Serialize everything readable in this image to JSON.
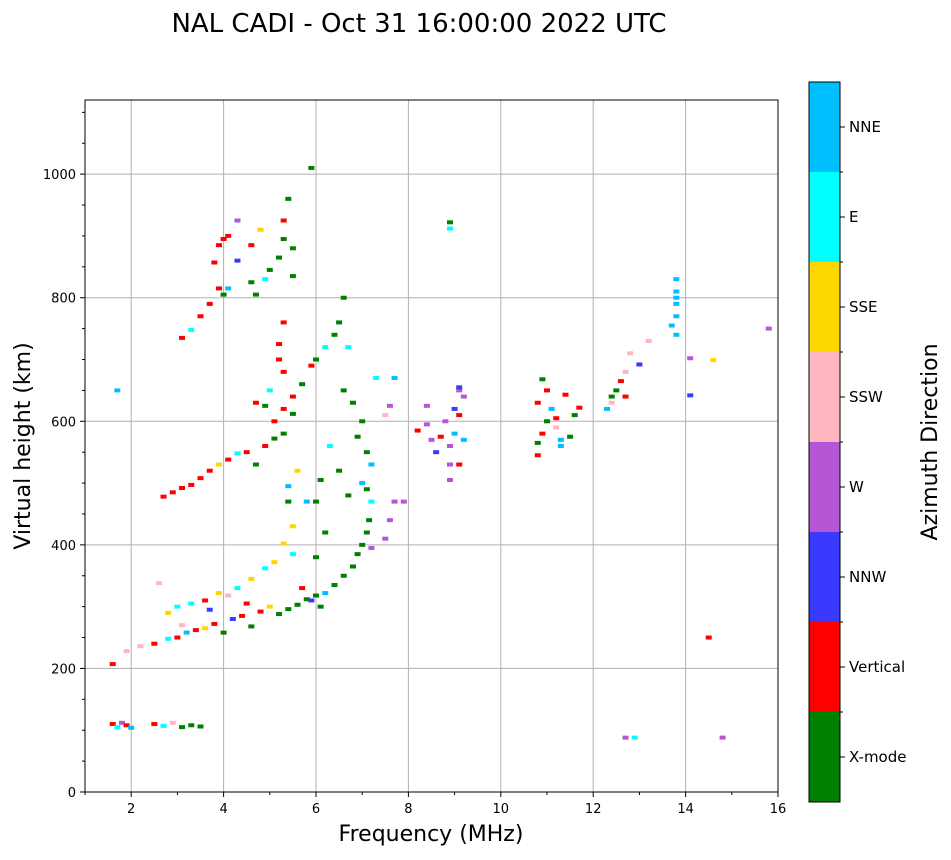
{
  "chart_data": {
    "type": "scatter",
    "title": "NAL CADI - Oct 31 16:00:00 2022 UTC",
    "xlabel": "Frequency (MHz)",
    "ylabel": "Virtual height (km)",
    "xlim": [
      1.0,
      16.0
    ],
    "ylim": [
      0,
      1120
    ],
    "xticks": [
      2,
      4,
      6,
      8,
      10,
      12,
      14,
      16
    ],
    "yticks": [
      0,
      200,
      400,
      600,
      800,
      1000
    ],
    "grid": true,
    "colorbar": {
      "label": "Azimuth Direction",
      "categories": [
        {
          "name": "X-mode",
          "color": "#008000"
        },
        {
          "name": "Vertical",
          "color": "#ff0000"
        },
        {
          "name": "NNW",
          "color": "#3a3aff"
        },
        {
          "name": "W",
          "color": "#b656d6"
        },
        {
          "name": "SSW",
          "color": "#ffb6c1"
        },
        {
          "name": "SSE",
          "color": "#ffd700"
        },
        {
          "name": "E",
          "color": "#00ffff"
        },
        {
          "name": "NNE",
          "color": "#00bfff"
        }
      ]
    },
    "points": [
      [
        1.6,
        110,
        "Vertical"
      ],
      [
        1.7,
        105,
        "E"
      ],
      [
        1.8,
        112,
        "W"
      ],
      [
        1.9,
        108,
        "Vertical"
      ],
      [
        2.0,
        104,
        "NNE"
      ],
      [
        2.5,
        110,
        "Vertical"
      ],
      [
        2.7,
        107,
        "E"
      ],
      [
        2.9,
        112,
        "SSW"
      ],
      [
        3.1,
        105,
        "X-mode"
      ],
      [
        3.3,
        108,
        "X-mode"
      ],
      [
        3.5,
        106,
        "X-mode"
      ],
      [
        1.7,
        650,
        "NNE"
      ],
      [
        1.6,
        207,
        "Vertical"
      ],
      [
        1.9,
        228,
        "SSW"
      ],
      [
        2.2,
        236,
        "SSW"
      ],
      [
        2.5,
        240,
        "Vertical"
      ],
      [
        2.8,
        248,
        "E"
      ],
      [
        3.0,
        250,
        "Vertical"
      ],
      [
        3.2,
        258,
        "NNE"
      ],
      [
        3.4,
        262,
        "Vertical"
      ],
      [
        3.6,
        265,
        "SSE"
      ],
      [
        3.8,
        272,
        "Vertical"
      ],
      [
        4.0,
        258,
        "X-mode"
      ],
      [
        4.2,
        280,
        "NNW"
      ],
      [
        4.4,
        285,
        "Vertical"
      ],
      [
        4.6,
        268,
        "X-mode"
      ],
      [
        4.8,
        292,
        "Vertical"
      ],
      [
        5.0,
        300,
        "SSE"
      ],
      [
        5.2,
        288,
        "X-mode"
      ],
      [
        5.4,
        296,
        "X-mode"
      ],
      [
        5.6,
        303,
        "X-mode"
      ],
      [
        5.8,
        312,
        "X-mode"
      ],
      [
        6.0,
        318,
        "X-mode"
      ],
      [
        6.2,
        322,
        "NNE"
      ],
      [
        6.4,
        335,
        "X-mode"
      ],
      [
        6.6,
        350,
        "X-mode"
      ],
      [
        6.8,
        365,
        "X-mode"
      ],
      [
        6.9,
        385,
        "X-mode"
      ],
      [
        7.0,
        400,
        "X-mode"
      ],
      [
        7.1,
        420,
        "X-mode"
      ],
      [
        7.15,
        440,
        "X-mode"
      ],
      [
        7.2,
        395,
        "W"
      ],
      [
        7.2,
        470,
        "E"
      ],
      [
        7.1,
        490,
        "X-mode"
      ],
      [
        2.8,
        290,
        "SSE"
      ],
      [
        3.0,
        300,
        "E"
      ],
      [
        3.3,
        305,
        "E"
      ],
      [
        3.6,
        310,
        "Vertical"
      ],
      [
        3.9,
        322,
        "SSE"
      ],
      [
        4.3,
        330,
        "E"
      ],
      [
        4.6,
        345,
        "SSE"
      ],
      [
        4.9,
        362,
        "E"
      ],
      [
        5.1,
        372,
        "SSE"
      ],
      [
        5.3,
        402,
        "SSE"
      ],
      [
        5.5,
        385,
        "E"
      ],
      [
        4.1,
        318,
        "SSW"
      ],
      [
        3.1,
        270,
        "SSW"
      ],
      [
        2.6,
        338,
        "SSW"
      ],
      [
        3.7,
        295,
        "NNW"
      ],
      [
        4.5,
        305,
        "Vertical"
      ],
      [
        5.7,
        330,
        "Vertical"
      ],
      [
        5.9,
        310,
        "NNW"
      ],
      [
        6.1,
        300,
        "X-mode"
      ],
      [
        2.7,
        478,
        "Vertical"
      ],
      [
        2.9,
        485,
        "Vertical"
      ],
      [
        3.1,
        492,
        "Vertical"
      ],
      [
        3.3,
        497,
        "Vertical"
      ],
      [
        3.5,
        508,
        "Vertical"
      ],
      [
        3.7,
        520,
        "Vertical"
      ],
      [
        3.9,
        530,
        "SSE"
      ],
      [
        4.1,
        538,
        "Vertical"
      ],
      [
        4.3,
        548,
        "E"
      ],
      [
        4.5,
        550,
        "Vertical"
      ],
      [
        4.7,
        530,
        "X-mode"
      ],
      [
        4.9,
        560,
        "Vertical"
      ],
      [
        5.1,
        572,
        "X-mode"
      ],
      [
        5.3,
        580,
        "X-mode"
      ],
      [
        5.5,
        612,
        "X-mode"
      ],
      [
        5.1,
        600,
        "Vertical"
      ],
      [
        5.3,
        620,
        "Vertical"
      ],
      [
        4.9,
        625,
        "X-mode"
      ],
      [
        4.7,
        630,
        "Vertical"
      ],
      [
        5.0,
        650,
        "E"
      ],
      [
        5.3,
        680,
        "Vertical"
      ],
      [
        5.2,
        700,
        "Vertical"
      ],
      [
        5.2,
        725,
        "Vertical"
      ],
      [
        5.3,
        760,
        "Vertical"
      ],
      [
        5.5,
        640,
        "Vertical"
      ],
      [
        5.7,
        660,
        "X-mode"
      ],
      [
        5.9,
        690,
        "Vertical"
      ],
      [
        6.0,
        700,
        "X-mode"
      ],
      [
        6.2,
        720,
        "E"
      ],
      [
        6.4,
        740,
        "X-mode"
      ],
      [
        6.5,
        760,
        "X-mode"
      ],
      [
        6.6,
        800,
        "X-mode"
      ],
      [
        6.7,
        720,
        "E"
      ],
      [
        6.6,
        650,
        "X-mode"
      ],
      [
        6.8,
        630,
        "X-mode"
      ],
      [
        7.0,
        600,
        "X-mode"
      ],
      [
        6.9,
        575,
        "X-mode"
      ],
      [
        7.1,
        550,
        "X-mode"
      ],
      [
        7.2,
        530,
        "NNE"
      ],
      [
        6.3,
        560,
        "E"
      ],
      [
        6.5,
        520,
        "X-mode"
      ],
      [
        6.1,
        505,
        "X-mode"
      ],
      [
        6.0,
        470,
        "X-mode"
      ],
      [
        6.7,
        480,
        "X-mode"
      ],
      [
        7.0,
        500,
        "NNE"
      ],
      [
        6.2,
        420,
        "X-mode"
      ],
      [
        6.0,
        380,
        "X-mode"
      ],
      [
        5.5,
        430,
        "SSE"
      ],
      [
        5.4,
        470,
        "X-mode"
      ],
      [
        5.6,
        520,
        "SSE"
      ],
      [
        5.8,
        470,
        "NNE"
      ],
      [
        5.4,
        495,
        "NNE"
      ],
      [
        7.3,
        670,
        "E"
      ],
      [
        7.5,
        610,
        "SSW"
      ],
      [
        7.6,
        625,
        "W"
      ],
      [
        7.7,
        670,
        "NNE"
      ],
      [
        7.7,
        470,
        "W"
      ],
      [
        7.9,
        470,
        "W"
      ],
      [
        7.6,
        440,
        "W"
      ],
      [
        7.5,
        410,
        "W"
      ],
      [
        3.1,
        735,
        "Vertical"
      ],
      [
        3.3,
        748,
        "E"
      ],
      [
        3.5,
        770,
        "Vertical"
      ],
      [
        3.7,
        790,
        "Vertical"
      ],
      [
        3.9,
        815,
        "Vertical"
      ],
      [
        4.0,
        805,
        "X-mode"
      ],
      [
        4.1,
        815,
        "NNE"
      ],
      [
        3.8,
        857,
        "Vertical"
      ],
      [
        3.9,
        885,
        "Vertical"
      ],
      [
        4.0,
        895,
        "Vertical"
      ],
      [
        4.1,
        900,
        "Vertical"
      ],
      [
        4.3,
        860,
        "NNW"
      ],
      [
        4.6,
        825,
        "X-mode"
      ],
      [
        4.7,
        805,
        "X-mode"
      ],
      [
        4.9,
        830,
        "E"
      ],
      [
        5.0,
        845,
        "X-mode"
      ],
      [
        5.2,
        865,
        "X-mode"
      ],
      [
        5.3,
        895,
        "X-mode"
      ],
      [
        5.5,
        880,
        "X-mode"
      ],
      [
        5.4,
        960,
        "X-mode"
      ],
      [
        5.3,
        925,
        "Vertical"
      ],
      [
        4.6,
        885,
        "Vertical"
      ],
      [
        4.3,
        925,
        "W"
      ],
      [
        4.8,
        910,
        "SSE"
      ],
      [
        5.5,
        835,
        "X-mode"
      ],
      [
        5.9,
        1010,
        "X-mode"
      ],
      [
        8.9,
        922,
        "X-mode"
      ],
      [
        8.9,
        912,
        "E"
      ],
      [
        8.2,
        585,
        "Vertical"
      ],
      [
        8.4,
        595,
        "W"
      ],
      [
        8.5,
        570,
        "W"
      ],
      [
        8.6,
        550,
        "NNW"
      ],
      [
        8.7,
        575,
        "Vertical"
      ],
      [
        8.8,
        600,
        "W"
      ],
      [
        8.9,
        560,
        "W"
      ],
      [
        8.9,
        530,
        "W"
      ],
      [
        9.0,
        620,
        "NNW"
      ],
      [
        9.0,
        580,
        "NNE"
      ],
      [
        9.1,
        650,
        "W"
      ],
      [
        9.1,
        610,
        "Vertical"
      ],
      [
        9.1,
        530,
        "Vertical"
      ],
      [
        9.2,
        570,
        "NNE"
      ],
      [
        9.2,
        640,
        "W"
      ],
      [
        8.4,
        625,
        "W"
      ],
      [
        8.9,
        505,
        "W"
      ],
      [
        9.1,
        655,
        "NNW"
      ],
      [
        10.8,
        565,
        "X-mode"
      ],
      [
        10.9,
        580,
        "Vertical"
      ],
      [
        11.0,
        600,
        "X-mode"
      ],
      [
        11.1,
        620,
        "NNE"
      ],
      [
        11.2,
        590,
        "SSW"
      ],
      [
        11.3,
        570,
        "NNE"
      ],
      [
        11.4,
        643,
        "Vertical"
      ],
      [
        11.5,
        575,
        "X-mode"
      ],
      [
        11.6,
        610,
        "X-mode"
      ],
      [
        11.7,
        622,
        "Vertical"
      ],
      [
        10.8,
        545,
        "Vertical"
      ],
      [
        10.9,
        668,
        "X-mode"
      ],
      [
        11.0,
        650,
        "Vertical"
      ],
      [
        11.3,
        560,
        "NNE"
      ],
      [
        11.2,
        605,
        "Vertical"
      ],
      [
        10.8,
        630,
        "Vertical"
      ],
      [
        12.3,
        620,
        "NNE"
      ],
      [
        12.4,
        640,
        "X-mode"
      ],
      [
        12.6,
        665,
        "Vertical"
      ],
      [
        12.7,
        680,
        "SSW"
      ],
      [
        12.8,
        710,
        "SSW"
      ],
      [
        12.5,
        650,
        "X-mode"
      ],
      [
        12.4,
        630,
        "SSW"
      ],
      [
        12.7,
        640,
        "Vertical"
      ],
      [
        13.0,
        692,
        "NNW"
      ],
      [
        13.2,
        730,
        "SSW"
      ],
      [
        13.8,
        830,
        "NNE"
      ],
      [
        13.8,
        810,
        "NNE"
      ],
      [
        13.8,
        790,
        "NNE"
      ],
      [
        13.8,
        770,
        "NNE"
      ],
      [
        13.7,
        755,
        "NNE"
      ],
      [
        13.8,
        740,
        "NNE"
      ],
      [
        13.8,
        800,
        "NNE"
      ],
      [
        14.1,
        702,
        "W"
      ],
      [
        14.6,
        699,
        "SSE"
      ],
      [
        14.1,
        642,
        "NNW"
      ],
      [
        15.8,
        750,
        "W"
      ],
      [
        14.5,
        250,
        "Vertical"
      ],
      [
        12.7,
        88,
        "W"
      ],
      [
        12.9,
        88,
        "E"
      ],
      [
        14.8,
        88,
        "W"
      ]
    ]
  }
}
